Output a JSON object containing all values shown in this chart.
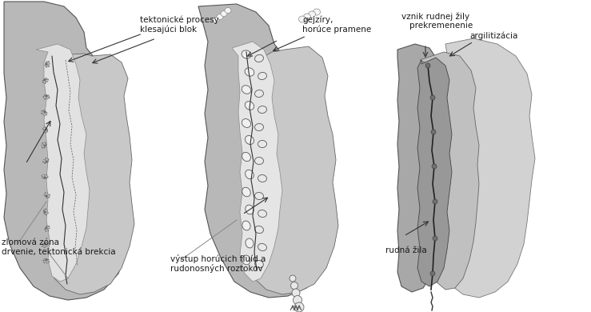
{
  "bg_color": "#ffffff",
  "figsize": [
    7.39,
    3.9
  ],
  "dpi": 100,
  "labels": {
    "label1_line1": "tektonické procesy",
    "label1_line2": "klesajúci blok",
    "label2_line1": "gejzíry,",
    "label2_line2": "horúce pramene",
    "label3_line1": "vznik rudnej žily",
    "label3_line2": "prekremenenie",
    "label3_line3": "argilitizácia",
    "label4_line1": "zlomová zóna",
    "label4_line2": "drvenie, tektonická brekcia",
    "label5_line1": "výstup horúcich fluíd a",
    "label5_line2": "rudonosných roztokov",
    "label6": "rudná žila"
  }
}
